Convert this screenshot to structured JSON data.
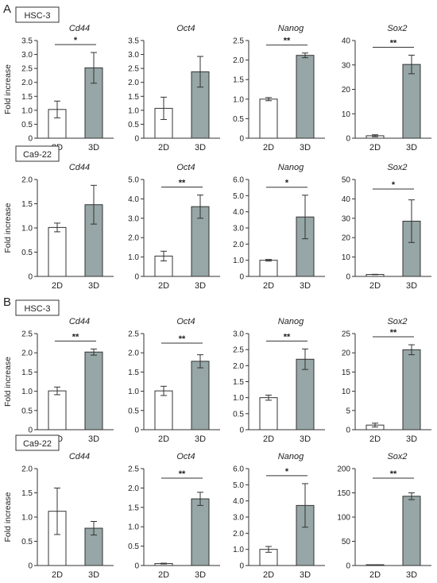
{
  "panel_letters": [
    "A",
    "B"
  ],
  "y_axis_title": "Fold increase",
  "colors": {
    "group_2d": "#ffffff",
    "group_3d": "#97a6a6",
    "stroke": "#333333"
  },
  "chart_data": [
    {
      "panel": "A",
      "cell_line": "HSC-3",
      "gene": "Cd44",
      "type": "bar",
      "categories": [
        "2D",
        "3D"
      ],
      "values": [
        1.03,
        2.52
      ],
      "errors": [
        0.3,
        0.55
      ],
      "ylim": [
        0,
        3.5
      ],
      "ticks": [
        "0",
        "0.5",
        "1.0",
        "1.5",
        "2.0",
        "2.5",
        "3.0",
        "3.5"
      ],
      "significance": "*",
      "ylabel": "Fold increase"
    },
    {
      "panel": "A",
      "cell_line": "HSC-3",
      "gene": "Oct4",
      "type": "bar",
      "categories": [
        "2D",
        "3D"
      ],
      "values": [
        1.07,
        2.38
      ],
      "errors": [
        0.4,
        0.55
      ],
      "ylim": [
        0,
        3.5
      ],
      "ticks": [
        "0",
        "0.5",
        "1.0",
        "1.5",
        "2.0",
        "2.5",
        "3.0",
        "3.5"
      ],
      "significance": ""
    },
    {
      "panel": "A",
      "cell_line": "HSC-3",
      "gene": "Nanog",
      "type": "bar",
      "categories": [
        "2D",
        "3D"
      ],
      "values": [
        1.0,
        2.12
      ],
      "errors": [
        0.04,
        0.06
      ],
      "ylim": [
        0,
        2.5
      ],
      "ticks": [
        "0",
        "0.5",
        "1.0",
        "1.5",
        "2.0",
        "2.5"
      ],
      "significance": "**"
    },
    {
      "panel": "A",
      "cell_line": "HSC-3",
      "gene": "Sox2",
      "type": "bar",
      "categories": [
        "2D",
        "3D"
      ],
      "values": [
        1.0,
        30.2
      ],
      "errors": [
        0.4,
        3.8
      ],
      "ylim": [
        0,
        40
      ],
      "ticks": [
        "0",
        "10",
        "20",
        "30",
        "40"
      ],
      "significance": "**"
    },
    {
      "panel": "A",
      "cell_line": "Ca9-22",
      "gene": "Cd44",
      "type": "bar",
      "categories": [
        "2D",
        "3D"
      ],
      "values": [
        1.01,
        1.48
      ],
      "errors": [
        0.09,
        0.4
      ],
      "ylim": [
        0,
        2.0
      ],
      "ticks": [
        "0",
        "0.5",
        "1.0",
        "1.5",
        "2.0"
      ],
      "significance": "",
      "ylabel": "Fold increase"
    },
    {
      "panel": "A",
      "cell_line": "Ca9-22",
      "gene": "Oct4",
      "type": "bar",
      "categories": [
        "2D",
        "3D"
      ],
      "values": [
        1.05,
        3.6
      ],
      "errors": [
        0.25,
        0.6
      ],
      "ylim": [
        0,
        5.0
      ],
      "ticks": [
        "0",
        "1.0",
        "2.0",
        "3.0",
        "4.0",
        "5.0"
      ],
      "significance": "**"
    },
    {
      "panel": "A",
      "cell_line": "Ca9-22",
      "gene": "Nanog",
      "type": "bar",
      "categories": [
        "2D",
        "3D"
      ],
      "values": [
        1.0,
        3.68
      ],
      "errors": [
        0.05,
        1.35
      ],
      "ylim": [
        0,
        6.0
      ],
      "ticks": [
        "0",
        "1.0",
        "2.0",
        "3.0",
        "4.0",
        "5.0",
        "6.0"
      ],
      "significance": "*"
    },
    {
      "panel": "A",
      "cell_line": "Ca9-22",
      "gene": "Sox2",
      "type": "bar",
      "categories": [
        "2D",
        "3D"
      ],
      "values": [
        1.0,
        28.5
      ],
      "errors": [
        0.1,
        11.0
      ],
      "ylim": [
        0,
        50
      ],
      "ticks": [
        "0",
        "10",
        "20",
        "30",
        "40",
        "50"
      ],
      "significance": "*"
    },
    {
      "panel": "B",
      "cell_line": "HSC-3",
      "gene": "Cd44",
      "type": "bar",
      "categories": [
        "2D",
        "3D"
      ],
      "values": [
        1.01,
        2.02
      ],
      "errors": [
        0.1,
        0.08
      ],
      "ylim": [
        0,
        2.5
      ],
      "ticks": [
        "0",
        "0.5",
        "1.0",
        "1.5",
        "2.0",
        "2.5"
      ],
      "significance": "**",
      "ylabel": "Fold increase"
    },
    {
      "panel": "B",
      "cell_line": "HSC-3",
      "gene": "Oct4",
      "type": "bar",
      "categories": [
        "2D",
        "3D"
      ],
      "values": [
        1.01,
        1.78
      ],
      "errors": [
        0.12,
        0.17
      ],
      "ylim": [
        0,
        2.5
      ],
      "ticks": [
        "0",
        "0.5",
        "1.0",
        "1.5",
        "2.0",
        "2.5"
      ],
      "significance": "**"
    },
    {
      "panel": "B",
      "cell_line": "HSC-3",
      "gene": "Nanog",
      "type": "bar",
      "categories": [
        "2D",
        "3D"
      ],
      "values": [
        1.0,
        2.2
      ],
      "errors": [
        0.08,
        0.32
      ],
      "ylim": [
        0,
        3.0
      ],
      "ticks": [
        "0",
        "0.5",
        "1.0",
        "1.5",
        "2.0",
        "2.5",
        "3.0"
      ],
      "significance": "**"
    },
    {
      "panel": "B",
      "cell_line": "HSC-3",
      "gene": "Sox2",
      "type": "bar",
      "categories": [
        "2D",
        "3D"
      ],
      "values": [
        1.2,
        20.8
      ],
      "errors": [
        0.5,
        1.3
      ],
      "ylim": [
        0,
        25
      ],
      "ticks": [
        "0",
        "5",
        "10",
        "15",
        "20",
        "25"
      ],
      "significance": "**"
    },
    {
      "panel": "B",
      "cell_line": "Ca9-22",
      "gene": "Cd44",
      "type": "bar",
      "categories": [
        "2D",
        "3D"
      ],
      "values": [
        1.12,
        0.77
      ],
      "errors": [
        0.48,
        0.14
      ],
      "ylim": [
        0,
        2.0
      ],
      "ticks": [
        "0",
        "0.5",
        "1.0",
        "1.5",
        "2.0"
      ],
      "significance": "",
      "ylabel": "Fold increase"
    },
    {
      "panel": "B",
      "cell_line": "Ca9-22",
      "gene": "Oct4",
      "type": "bar",
      "categories": [
        "2D",
        "3D"
      ],
      "values": [
        0.05,
        1.72
      ],
      "errors": [
        0.01,
        0.17
      ],
      "ylim": [
        0,
        2.5
      ],
      "ticks": [
        "0",
        "0.5",
        "1.0",
        "1.5",
        "2.0",
        "2.5"
      ],
      "significance": "**"
    },
    {
      "panel": "B",
      "cell_line": "Ca9-22",
      "gene": "Nanog",
      "type": "bar",
      "categories": [
        "2D",
        "3D"
      ],
      "values": [
        1.0,
        3.72
      ],
      "errors": [
        0.18,
        1.35
      ],
      "ylim": [
        0,
        6.0
      ],
      "ticks": [
        "0",
        "1.0",
        "2.0",
        "3.0",
        "4.0",
        "5.0",
        "6.0"
      ],
      "significance": "*"
    },
    {
      "panel": "B",
      "cell_line": "Ca9-22",
      "gene": "Sox2",
      "type": "bar",
      "categories": [
        "2D",
        "3D"
      ],
      "values": [
        0.5,
        143
      ],
      "errors": [
        0.1,
        7
      ],
      "ylim": [
        0,
        200
      ],
      "ticks": [
        "0",
        "50",
        "100",
        "150",
        "200"
      ],
      "significance": "**"
    }
  ]
}
